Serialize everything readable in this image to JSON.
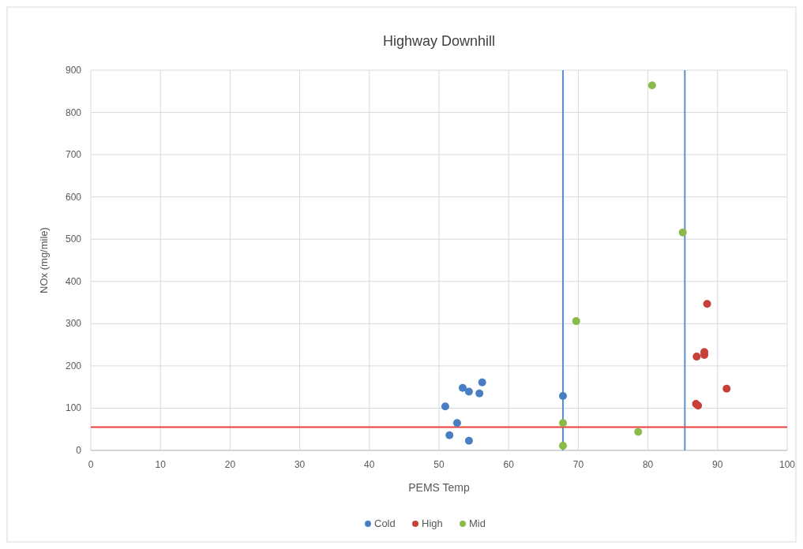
{
  "chart_data": {
    "type": "scatter",
    "title": "Highway Downhill",
    "xlabel": "PEMS Temp",
    "ylabel": "NOx (mg/mile)",
    "xlim": [
      0,
      100
    ],
    "xticks": [
      0,
      10,
      20,
      30,
      40,
      50,
      60,
      70,
      80,
      90,
      100
    ],
    "ylim": [
      0,
      900
    ],
    "yticks": [
      0,
      100,
      200,
      300,
      400,
      500,
      600,
      700,
      800,
      900
    ],
    "grid": true,
    "legend": "bottom",
    "marker": "circle",
    "series": [
      {
        "name": "Cold",
        "color": "#4a7ec4",
        "x": [
          50.9,
          52.6,
          51.5,
          53.4,
          54.3,
          54.3,
          55.8,
          56.2,
          67.8
        ],
        "values": [
          104,
          65,
          36,
          148,
          139,
          23,
          135,
          161,
          129
        ]
      },
      {
        "name": "High",
        "color": "#c8403a",
        "x": [
          88.5,
          87.0,
          88.1,
          88.1,
          91.3,
          86.9,
          87.2
        ],
        "values": [
          347,
          222,
          233,
          226,
          146,
          110,
          106
        ]
      },
      {
        "name": "Mid",
        "color": "#8cba4a",
        "x": [
          67.8,
          67.8,
          69.7,
          78.6,
          80.6,
          85.0
        ],
        "values": [
          65,
          11,
          306,
          44,
          864,
          516
        ]
      }
    ],
    "ref_lines": [
      {
        "axis": "x",
        "value": 67.8,
        "color": "#5b8fd0"
      },
      {
        "axis": "x",
        "value": 85.3,
        "color": "#5b8fd0"
      },
      {
        "axis": "y",
        "value": 55,
        "color": "#e8403a"
      }
    ]
  }
}
